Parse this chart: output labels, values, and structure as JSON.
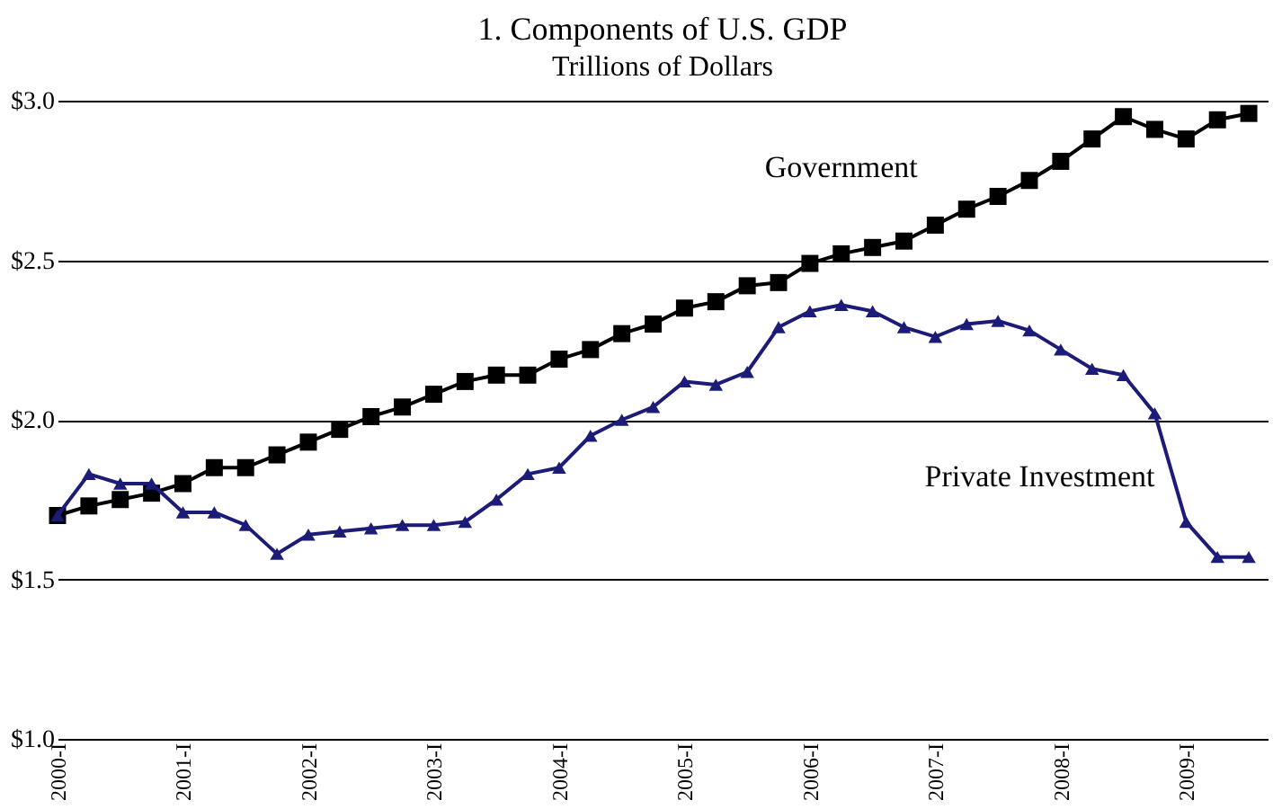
{
  "chart_data": {
    "type": "line",
    "title": "1. Components of U.S. GDP",
    "subtitle": "Trillions of Dollars",
    "categories": [
      "2000-I",
      null,
      null,
      null,
      "2001-I",
      null,
      null,
      null,
      "2002-I",
      null,
      null,
      null,
      "2003-I",
      null,
      null,
      null,
      "2004-I",
      null,
      null,
      null,
      "2005-I",
      null,
      null,
      null,
      "2006-I",
      null,
      null,
      null,
      "2007-I",
      null,
      null,
      null,
      "2008-I",
      null,
      null,
      null,
      "2009-I",
      null,
      null
    ],
    "series": [
      {
        "name": "Government",
        "color": "#000000",
        "marker": "square",
        "values": [
          1.7,
          1.73,
          1.75,
          1.77,
          1.8,
          1.85,
          1.85,
          1.89,
          1.93,
          1.97,
          2.01,
          2.04,
          2.08,
          2.12,
          2.14,
          2.14,
          2.19,
          2.22,
          2.27,
          2.3,
          2.35,
          2.37,
          2.42,
          2.43,
          2.49,
          2.52,
          2.54,
          2.56,
          2.61,
          2.66,
          2.7,
          2.75,
          2.81,
          2.88,
          2.95,
          2.91,
          2.88,
          2.94,
          2.96
        ]
      },
      {
        "name": "Private Investment",
        "color": "#1c1c78",
        "marker": "triangle",
        "values": [
          1.7,
          1.83,
          1.8,
          1.8,
          1.71,
          1.71,
          1.67,
          1.58,
          1.64,
          1.65,
          1.66,
          1.67,
          1.67,
          1.68,
          1.75,
          1.83,
          1.85,
          1.95,
          2.0,
          2.04,
          2.12,
          2.11,
          2.15,
          2.29,
          2.34,
          2.36,
          2.34,
          2.29,
          2.26,
          2.3,
          2.31,
          2.28,
          2.22,
          2.16,
          2.14,
          2.02,
          1.68,
          1.57,
          1.57
        ]
      }
    ],
    "ylim": [
      1.0,
      3.0
    ],
    "yticks": [
      {
        "value": 1.0,
        "label": "$1.0"
      },
      {
        "value": 1.5,
        "label": "$1.5"
      },
      {
        "value": 2.0,
        "label": "$2.0"
      },
      {
        "value": 2.5,
        "label": "$2.5"
      },
      {
        "value": 3.0,
        "label": "$3.0"
      }
    ],
    "grid": "y",
    "line_style": "solid"
  }
}
